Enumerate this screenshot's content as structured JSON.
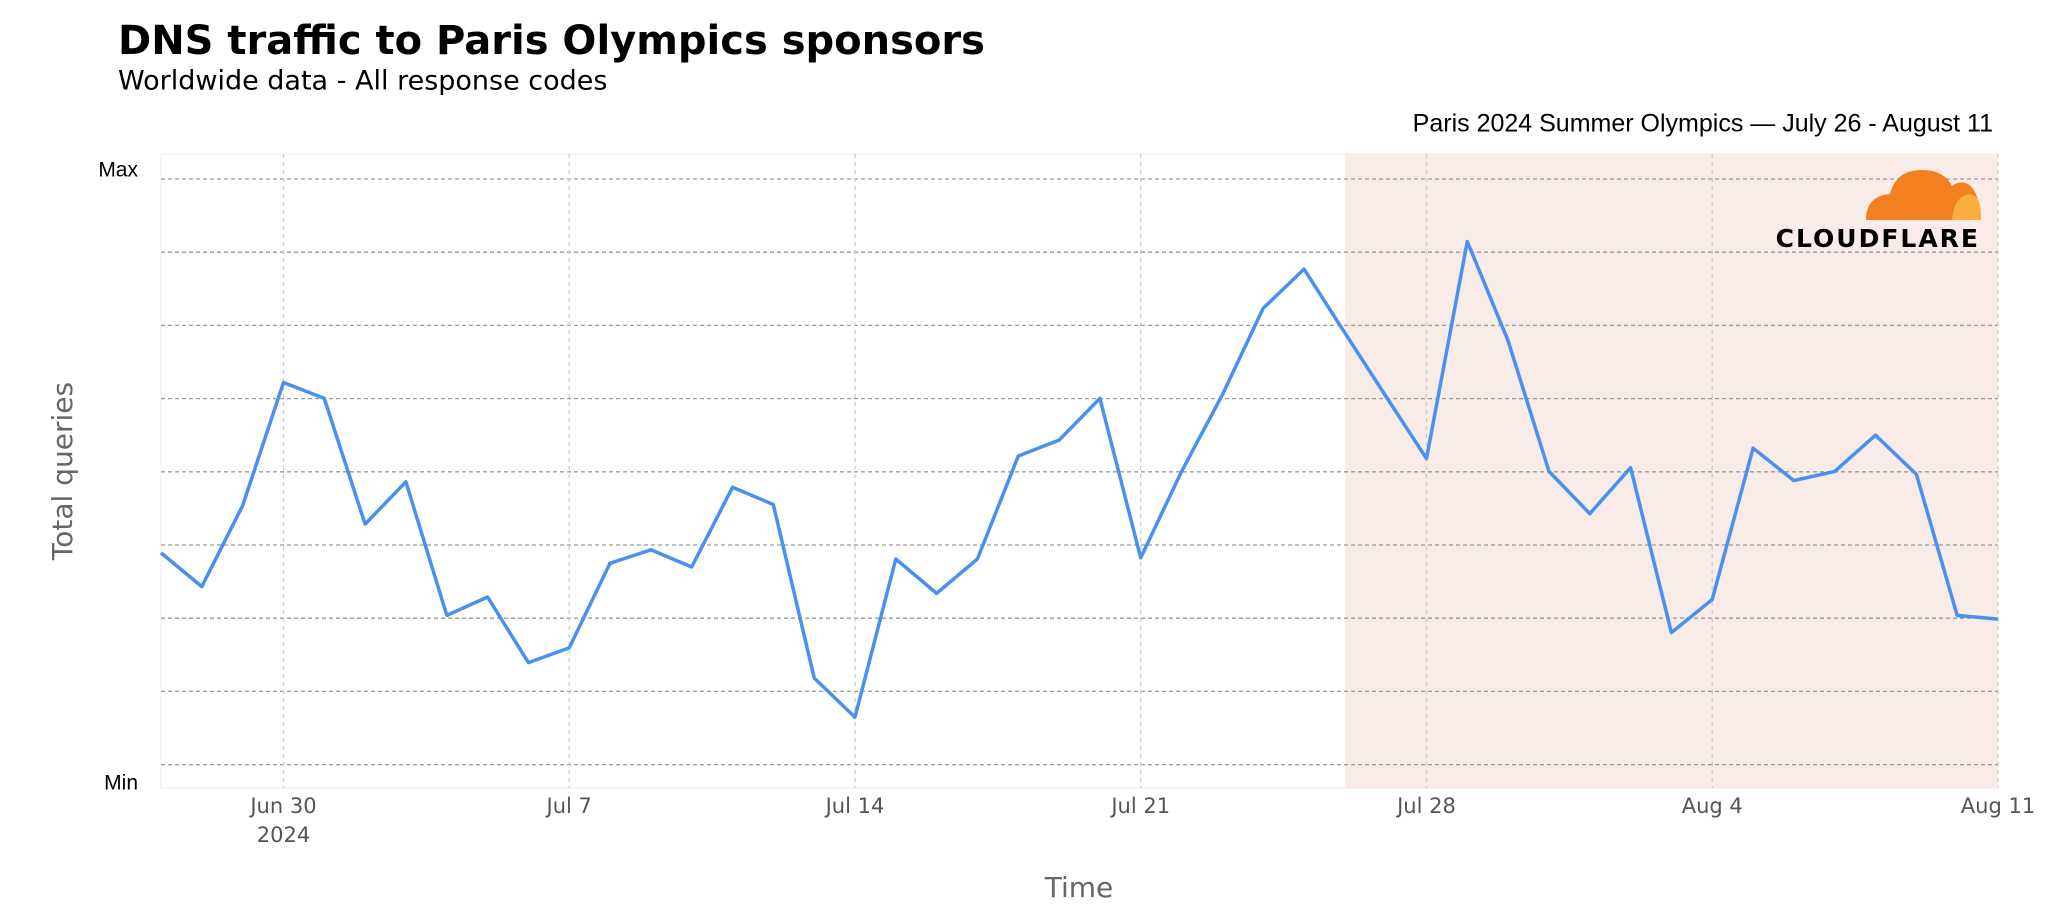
{
  "chart_data": {
    "type": "line",
    "title": "DNS traffic to Paris Olympics sponsors",
    "subtitle": "Worldwide data - All response codes",
    "x_label": "Time",
    "y_label": "Total queries",
    "x": [
      "2024-06-27",
      "2024-06-28",
      "2024-06-29",
      "2024-06-30",
      "2024-07-01",
      "2024-07-02",
      "2024-07-03",
      "2024-07-04",
      "2024-07-05",
      "2024-07-06",
      "2024-07-07",
      "2024-07-08",
      "2024-07-09",
      "2024-07-10",
      "2024-07-11",
      "2024-07-12",
      "2024-07-13",
      "2024-07-14",
      "2024-07-15",
      "2024-07-16",
      "2024-07-17",
      "2024-07-18",
      "2024-07-19",
      "2024-07-20",
      "2024-07-21",
      "2024-07-22",
      "2024-07-23",
      "2024-07-24",
      "2024-07-25",
      "2024-07-26",
      "2024-07-27",
      "2024-07-28",
      "2024-07-29",
      "2024-07-30",
      "2024-07-31",
      "2024-08-01",
      "2024-08-02",
      "2024-08-03",
      "2024-08-04",
      "2024-08-05",
      "2024-08-06",
      "2024-08-07",
      "2024-08-08",
      "2024-08-09",
      "2024-08-10",
      "2024-08-11"
    ],
    "series": [
      {
        "name": "Total queries",
        "color": "#4a90f0",
        "values": [
          37.7,
          32.2,
          45.4,
          65.5,
          62.9,
          42.4,
          49.3,
          27.5,
          30.5,
          19.8,
          22.2,
          36.0,
          38.2,
          35.4,
          48.4,
          45.6,
          17.3,
          10.9,
          36.7,
          31.1,
          36.7,
          53.5,
          56.1,
          62.9,
          36.9,
          51.0,
          63.5,
          77.6,
          84.0,
          73.6,
          63.3,
          53.1,
          88.5,
          72.3,
          51.0,
          44.1,
          51.6,
          24.7,
          30.1,
          54.8,
          49.5,
          51.0,
          56.9,
          50.5,
          27.5,
          26.9
        ]
      }
    ],
    "xlim": [
      "2024-06-27",
      "2024-08-11"
    ],
    "xticks": [
      {
        "value": "2024-06-30",
        "label": "Jun 30"
      },
      {
        "value": "2024-07-07",
        "label": "Jul 7"
      },
      {
        "value": "2024-07-14",
        "label": "Jul 14"
      },
      {
        "value": "2024-07-21",
        "label": "Jul 21"
      },
      {
        "value": "2024-07-28",
        "label": "Jul 28"
      },
      {
        "value": "2024-08-04",
        "label": "Aug 4"
      },
      {
        "value": "2024-08-11",
        "label": "Aug 11"
      }
    ],
    "x_year": "2024",
    "ylim": [
      0,
      100
    ],
    "yticks": [
      {
        "value": 0,
        "label": "Min"
      },
      {
        "value": 100,
        "label": "Max"
      }
    ],
    "grid": true,
    "highlight": {
      "start": "2024-07-26",
      "end": "2024-08-11",
      "color": "#f8ebe8",
      "label": "Paris 2024 Summer Olympics — July 26 - August 11"
    }
  },
  "logo_text": "CLOUDFLARE"
}
